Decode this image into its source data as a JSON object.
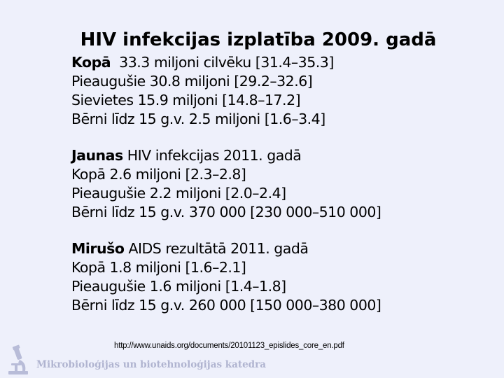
{
  "title": "HIV infekcijas izplatība 2009. gadā",
  "sections": [
    {
      "heading_bold": "Kopā",
      "heading_rest": "  33.3 miljoni cilvēku [31.4–35.3]",
      "lines": [
        "Pieaugušie 30.8 miljoni [29.2–32.6]",
        "Sievietes 15.9 miljoni [14.8–17.2]",
        "Bērni līdz 15 g.v. 2.5 miljoni [1.6–3.4]"
      ]
    },
    {
      "heading_bold": "Jaunas",
      "heading_rest": " HIV infekcijas 2011. gadā",
      "lines": [
        "Kopā 2.6 miljoni [2.3–2.8]",
        "Pieaugušie 2.2 miljoni [2.0–2.4]",
        "Bērni līdz 15 g.v. 370 000 [230 000–510 000]"
      ]
    },
    {
      "heading_bold": "Mirušo",
      "heading_rest": " AIDS rezultātā 2011. gadā",
      "lines": [
        "Kopā 1.8 miljoni [1.6–2.1]",
        "Pieaugušie 1.6 miljoni [1.4–1.8]",
        "Bērni līdz 15 g.v. 260 000 [150 000–380 000]"
      ]
    }
  ],
  "source": "http://www.unaids.org/documents/20101123_epislides_core_en.pdf",
  "footer": "Mikrobioloģijas un biotehnoloģijas katedra",
  "footer_icon": "microscope-icon",
  "colors": {
    "background": "#eef0fb",
    "footer": "#b0b4d0"
  }
}
